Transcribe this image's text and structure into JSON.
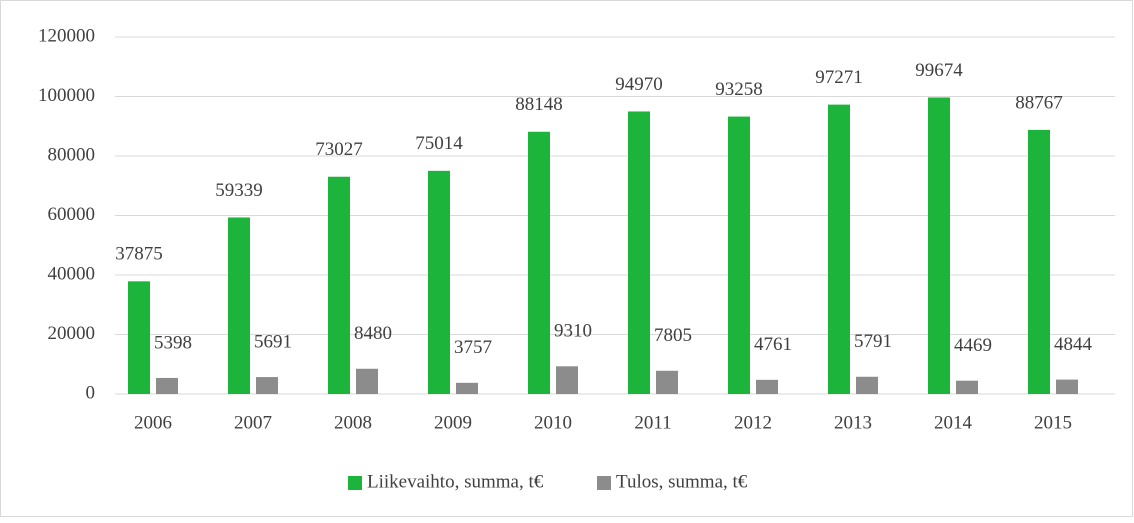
{
  "chart_data": {
    "type": "bar",
    "categories": [
      "2006",
      "2007",
      "2008",
      "2009",
      "2010",
      "2011",
      "2012",
      "2013",
      "2014",
      "2015"
    ],
    "series": [
      {
        "name": "Liikevaihto, summa, t€",
        "color": "#1db43c",
        "values": [
          37875,
          59339,
          73027,
          75014,
          88148,
          94970,
          93258,
          97271,
          99674,
          88767
        ]
      },
      {
        "name": "Tulos, summa, t€",
        "color": "#8c8c8c",
        "values": [
          5398,
          5691,
          8480,
          3757,
          9310,
          7805,
          4761,
          5791,
          4469,
          4844
        ]
      }
    ],
    "ylim": [
      0,
      120000
    ],
    "yticks": [
      0,
      20000,
      40000,
      60000,
      80000,
      100000,
      120000
    ],
    "grid": true,
    "legend": "bottom"
  }
}
